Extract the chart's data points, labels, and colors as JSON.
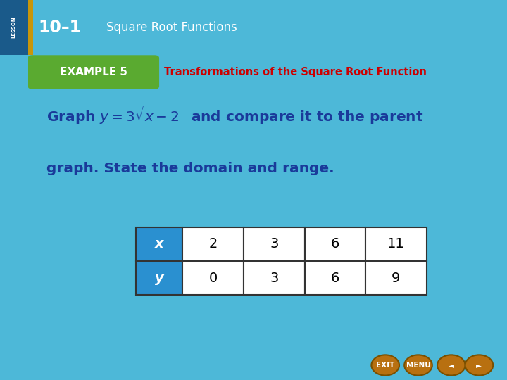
{
  "header_bg": "#2a7bbf",
  "header_dark_strip": "#1a5a8a",
  "header_gold_strip": "#c8960a",
  "header_title_num": "10–1",
  "header_title_text": "Square Root Functions",
  "example_green": "#5aaa30",
  "example_label": "EXAMPLE 5",
  "example_title": "Transformations of the Square Root Function",
  "example_title_color": "#cc0000",
  "main_bg": "#4db8d8",
  "white_panel_bg": "#ffffff",
  "body_text_color": "#1a3a9a",
  "table_header_color": "#2a90d0",
  "table_border_color": "#333333",
  "x_values": [
    "2",
    "3",
    "6",
    "11"
  ],
  "y_values": [
    "0",
    "3",
    "6",
    "9"
  ],
  "nav_btn_color": "#b87010",
  "nav_btn_labels": [
    "EXIT",
    "MENU",
    "◄",
    "►"
  ],
  "right_strip_color": "#38a8c8"
}
